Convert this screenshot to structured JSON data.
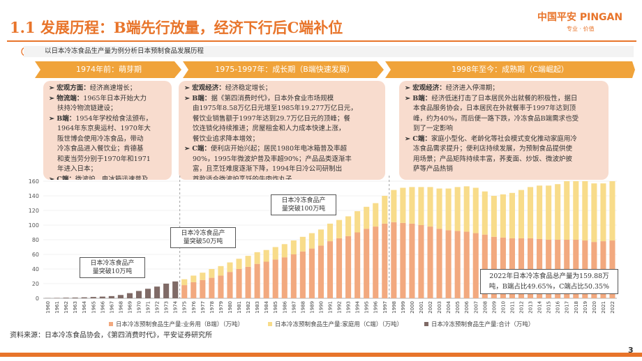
{
  "slide": {
    "title": "1.1 发展历程：B端先行放量，经济下行后C端补位",
    "subtitle": "以日本冷冻食品生产量为例分析日本预制食品发展历程",
    "source": "资料来源：日本冷冻食品协会，《第四消费时代》，平安证券研究所",
    "page_number": "3"
  },
  "logo": {
    "main": "中国平安 PINGAN",
    "sub": "专业 · 价值"
  },
  "phases": [
    {
      "label": "1974年前：萌芽期"
    },
    {
      "label": "1975-1997年：成长期（B端快速发展）"
    },
    {
      "label": "1998年至今：成熟期（C端崛起）"
    }
  ],
  "boxes": [
    {
      "lines": [
        {
          "k": "➢ 宏观方面：",
          "t": "经济高速增长；"
        },
        {
          "k": "➢ 物流端：",
          "t": "1965年日本开始大力"
        },
        {
          "k": "",
          "t": "扶持冷物流链建设；"
        },
        {
          "k": "➢ B端：",
          "t": "1954年学校给食法颁布，"
        },
        {
          "k": "",
          "t": "1964年东京奥运村、1970年大"
        },
        {
          "k": "",
          "t": "阪世博会使用冷冻食品，带动"
        },
        {
          "k": "",
          "t": "冷冻食品进入餐饮业；肯德基"
        },
        {
          "k": "",
          "t": "和麦当劳分别于1970年和1971"
        },
        {
          "k": "",
          "t": "年进入日本；"
        },
        {
          "k": "➢ C端：",
          "t": "微波炉、电冰箱迅速普及"
        }
      ]
    },
    {
      "lines": [
        {
          "k": "➢ 宏观经济：",
          "t": "经济稳定增长；"
        },
        {
          "k": "➢ B端：",
          "t": "据《第四消费时代》，日本外食业市场规模"
        },
        {
          "k": "",
          "t": "由1975年8.58万亿日元增至1985年19.277万亿日元，"
        },
        {
          "k": "",
          "t": "餐饮业销售额于1997年达到29.7万亿日元的顶峰；餐"
        },
        {
          "k": "",
          "t": "饮连锁化持续推进；房屋租金和人力成本快速上涨，"
        },
        {
          "k": "",
          "t": "餐饮业追求降本增效；"
        },
        {
          "k": "➢ C端：",
          "t": "便利店开始兴起；居民1980年电冰箱普及率超"
        },
        {
          "k": "",
          "t": "90%，1995年微波炉普及率超90%；产品品类逐渐丰"
        },
        {
          "k": "",
          "t": "富，且烹饪难度逐渐下降，1994年日冷公司研制出"
        },
        {
          "k": "",
          "t": "首款适合微波炉烹饪的牛肉炸丸子"
        }
      ]
    },
    {
      "lines": [
        {
          "k": "➢ 宏观经济：",
          "t": "经济进入停滞期；"
        },
        {
          "k": "➢ B端：",
          "t": "经济低迷打击了日本居民外出就餐的积极性，据日"
        },
        {
          "k": "",
          "t": "本食品服务协会，日本居民在外就餐率于1997年达到顶"
        },
        {
          "k": "",
          "t": "峰，约为40%，而后便一路下跌，冷冻食品B端需求也受"
        },
        {
          "k": "",
          "t": "到了一定影响"
        },
        {
          "k": "➢ C端：",
          "t": "家庭小型化、老龄化等社会模式变化推动家庭用冷"
        },
        {
          "k": "",
          "t": "冻食品需求提升；便利店持续发展，为预制食品提供使"
        },
        {
          "k": "",
          "t": "用场景；产品矩阵持续丰富，荞麦面、炒饭、微波炉披"
        },
        {
          "k": "",
          "t": "萨等产品热销"
        }
      ]
    }
  ],
  "callouts": [
    {
      "lines": [
        "日本冷冻食品产",
        "量突破10万吨"
      ]
    },
    {
      "lines": [
        "日本冷冻食品产",
        "量突破50万吨"
      ]
    },
    {
      "lines": [
        "日本冷冻食品产",
        "量突破100万吨"
      ]
    },
    {
      "lines": [
        "2022年日本冷冻食品总产量为159.88万",
        "吨，B端占比49.65%，C端占比50.35%"
      ]
    }
  ],
  "colors": {
    "accent": "#e8742a",
    "phase_bar": "#f0a33a",
    "box_bg": "#f8dcce",
    "series_business": "#f2a97f",
    "series_home": "#f8dc8a",
    "series_total": "#7f6a66"
  },
  "chart_data": {
    "type": "bar",
    "stacked": true,
    "ylim": [
      0,
      160
    ],
    "yticks": [
      0,
      20,
      40,
      60,
      80,
      100,
      120,
      140,
      160
    ],
    "categories": [
      "1960",
      "1961",
      "1962",
      "1963",
      "1964",
      "1965",
      "1966",
      "1967",
      "1968",
      "1969",
      "1970",
      "1971",
      "1972",
      "1973",
      "1974",
      "1975",
      "1976",
      "1977",
      "1978",
      "1979",
      "1980",
      "1981",
      "1982",
      "1983",
      "1984",
      "1985",
      "1986",
      "1987",
      "1988",
      "1989",
      "1990",
      "1991",
      "1992",
      "1993",
      "1994",
      "1995",
      "1996",
      "1997",
      "1998",
      "1999",
      "2000",
      "2001",
      "2002",
      "2003",
      "2004",
      "2005",
      "2006",
      "2007",
      "2008",
      "2009",
      "2010",
      "2011",
      "2012",
      "2013",
      "2014",
      "2015",
      "2016",
      "2017",
      "2018",
      "2019",
      "2020",
      "2021",
      "2022"
    ],
    "series": [
      {
        "name": "日本冷冻预制食品生产量:业务用（B端）（万吨）",
        "values": [
          null,
          null,
          null,
          null,
          null,
          null,
          null,
          null,
          null,
          null,
          null,
          null,
          null,
          null,
          null,
          18,
          22,
          25,
          28,
          31,
          36,
          40,
          43,
          47,
          50,
          53,
          56,
          60,
          64,
          68,
          72,
          78,
          82,
          85,
          90,
          95,
          98,
          102,
          104,
          103,
          102,
          100,
          98,
          95,
          93,
          92,
          91,
          89,
          87,
          84,
          83,
          82,
          82,
          82,
          81,
          80,
          80,
          80,
          80,
          79,
          77,
          78,
          79
        ]
      },
      {
        "name": "日本冷冻预制食品生产量:家庭用（C端）（万吨）",
        "values": [
          null,
          null,
          null,
          null,
          null,
          null,
          null,
          null,
          null,
          null,
          null,
          null,
          null,
          null,
          null,
          8,
          9,
          10,
          12,
          13,
          13,
          14,
          15,
          16,
          16,
          17,
          18,
          19,
          20,
          21,
          22,
          24,
          25,
          27,
          29,
          30,
          32,
          38,
          44,
          48,
          50,
          52,
          54,
          55,
          57,
          60,
          62,
          62,
          59,
          56,
          59,
          62,
          66,
          70,
          73,
          74,
          76,
          80,
          80,
          81,
          80,
          79,
          81
        ]
      },
      {
        "name": "日本冷冻预制食品生产量:合计（万吨）",
        "values": [
          0.3,
          0.5,
          0.8,
          1,
          1.3,
          1.8,
          2.3,
          3,
          4.5,
          7,
          10,
          13,
          16,
          20,
          23,
          null,
          null,
          null,
          null,
          null,
          null,
          null,
          null,
          null,
          null,
          null,
          null,
          null,
          null,
          null,
          null,
          null,
          null,
          null,
          null,
          null,
          null,
          null,
          null,
          null,
          null,
          null,
          null,
          null,
          null,
          null,
          null,
          null,
          null,
          null,
          null,
          null,
          null,
          null,
          null,
          null,
          null,
          null,
          null,
          null,
          null,
          null,
          null
        ]
      }
    ]
  }
}
